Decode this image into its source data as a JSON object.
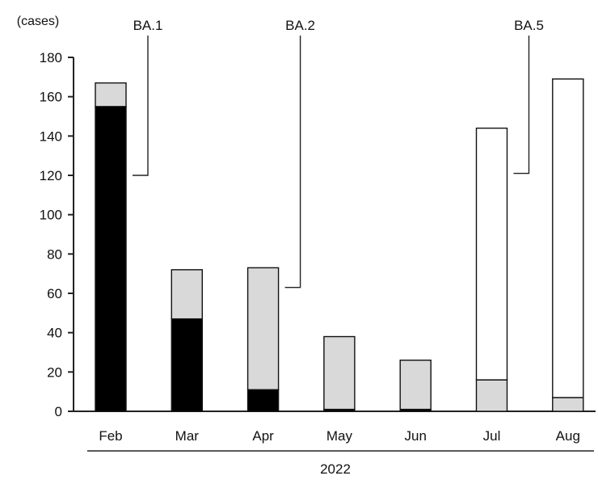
{
  "chart_data": {
    "type": "bar",
    "stacked": true,
    "title": "",
    "ylabel": "(cases)",
    "xlabel": "2022",
    "ylim": [
      0,
      180
    ],
    "yticks": [
      0,
      20,
      40,
      60,
      80,
      100,
      120,
      140,
      160,
      180
    ],
    "categories": [
      "Feb",
      "Mar",
      "Apr",
      "May",
      "Jun",
      "Jul",
      "Aug"
    ],
    "series": [
      {
        "name": "BA.1",
        "color": "#000000",
        "values": [
          155,
          47,
          11,
          1,
          1,
          0,
          0
        ]
      },
      {
        "name": "BA.2",
        "color": "#d9d9d9",
        "values": [
          12,
          25,
          62,
          37,
          25,
          16,
          7
        ]
      },
      {
        "name": "BA.5",
        "color": "#ffffff",
        "values": [
          0,
          0,
          0,
          0,
          0,
          128,
          162
        ]
      }
    ],
    "annotations": [
      {
        "label": "BA.1",
        "series": "BA.1",
        "category": "Feb",
        "y": 120
      },
      {
        "label": "BA.2",
        "series": "BA.2",
        "category": "Apr",
        "y": 63
      },
      {
        "label": "BA.5",
        "series": "BA.5",
        "category": "Jul",
        "y": 121
      }
    ],
    "grid": false,
    "legend": "none"
  }
}
